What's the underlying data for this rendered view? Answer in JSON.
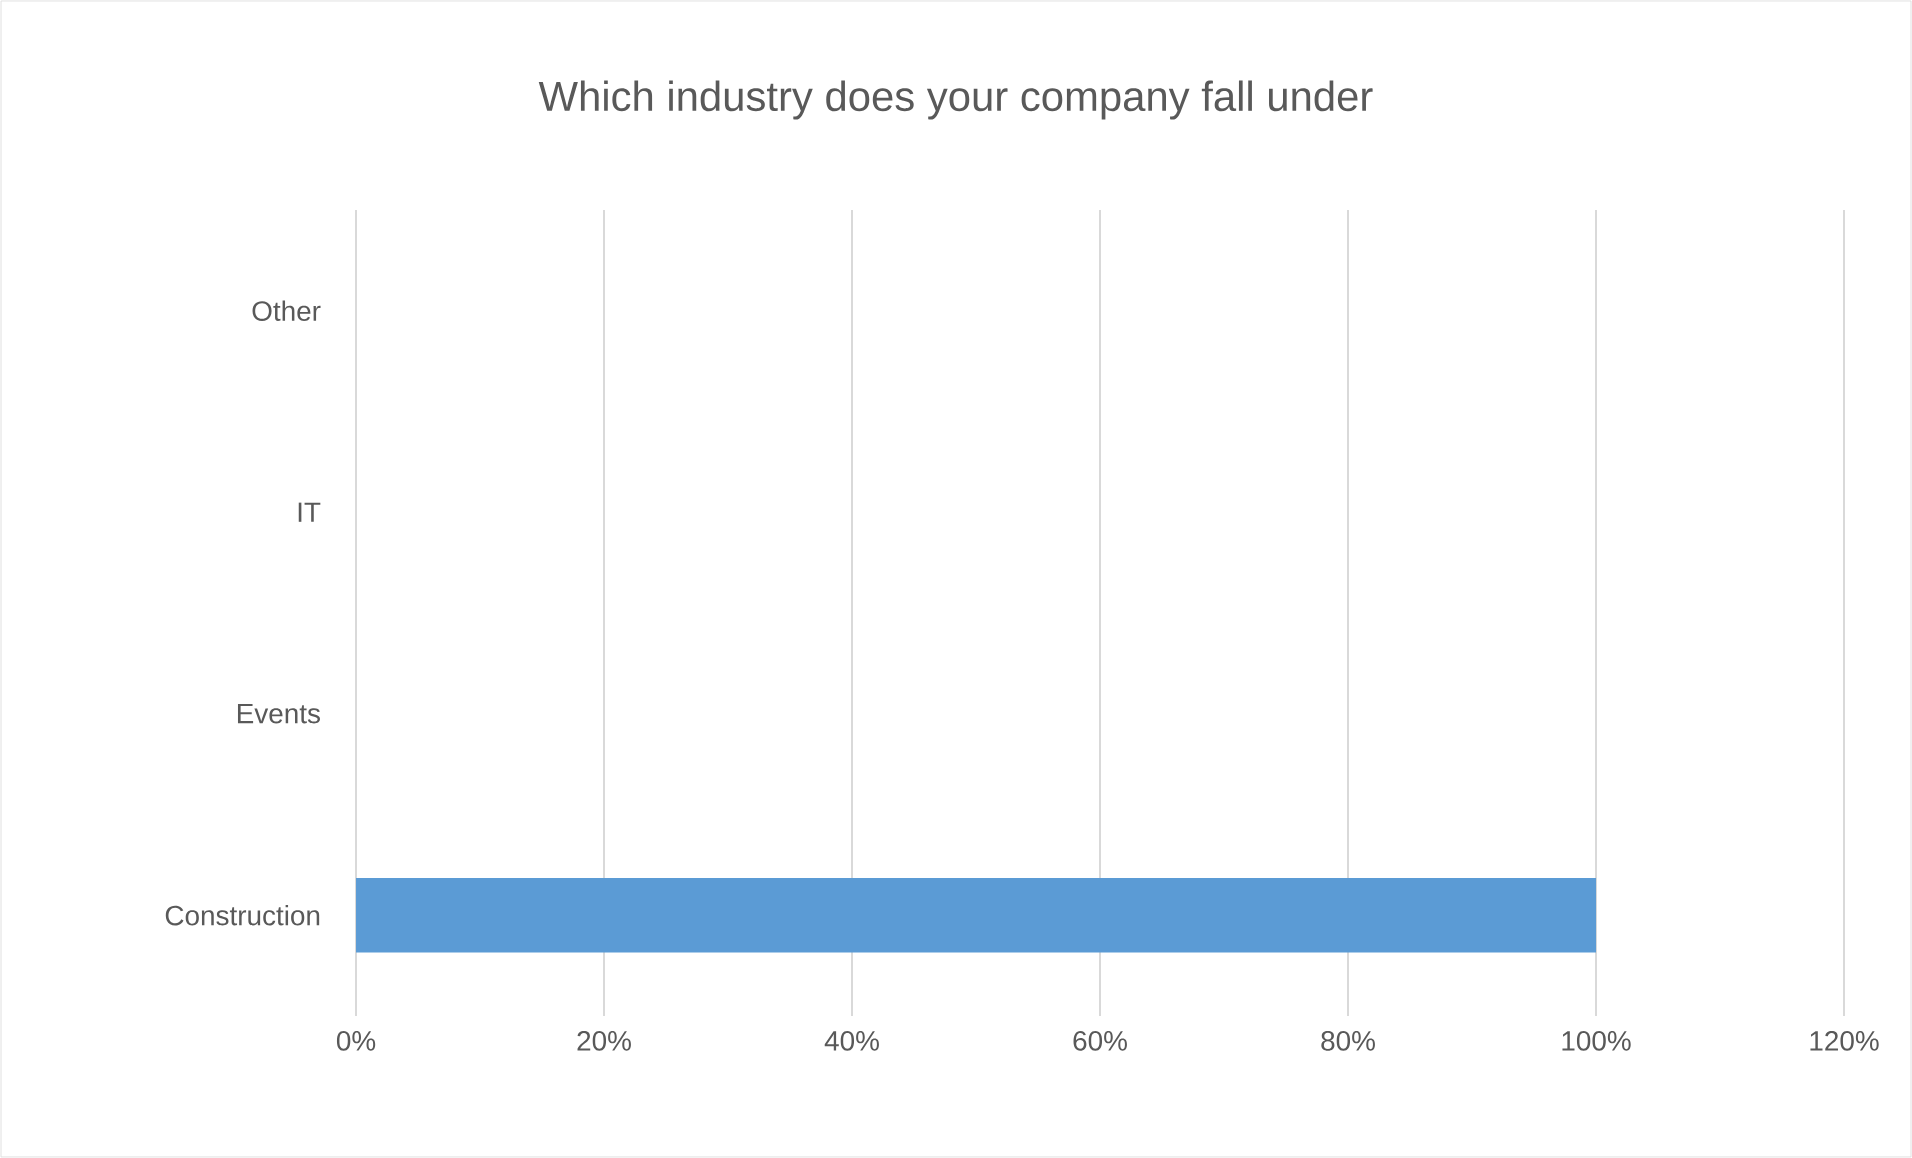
{
  "chart_data": {
    "type": "bar",
    "orientation": "horizontal",
    "title": "Which industry does your company fall under",
    "categories": [
      "Other",
      "IT",
      "Events",
      "Construction"
    ],
    "values": [
      0,
      0,
      0,
      100
    ],
    "color": "#5b9bd5",
    "xlim": [
      0,
      120
    ],
    "xticks": [
      {
        "value": 0,
        "label": "0%"
      },
      {
        "value": 20,
        "label": "20%"
      },
      {
        "value": 40,
        "label": "40%"
      },
      {
        "value": 60,
        "label": "60%"
      },
      {
        "value": 80,
        "label": "80%"
      },
      {
        "value": 100,
        "label": "100%"
      },
      {
        "value": 120,
        "label": "120%"
      }
    ],
    "grid": "x"
  }
}
